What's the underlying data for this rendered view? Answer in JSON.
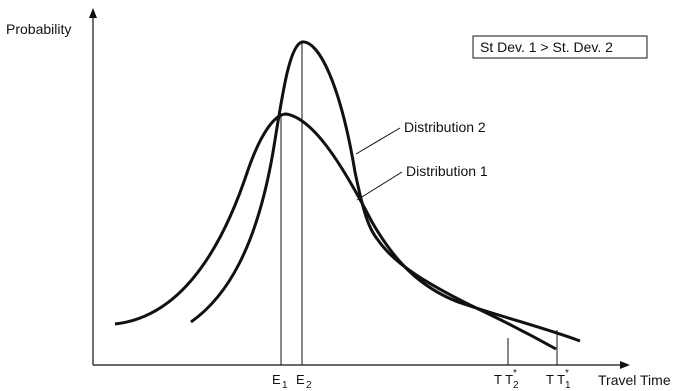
{
  "labels": {
    "y_axis": "Probability",
    "x_axis": "Travel Time",
    "legend_box": "St Dev. 1 > St. Dev. 2",
    "curve2": "Distribution 2",
    "curve1": "Distribution 1"
  },
  "ticks": {
    "e1": {
      "base": "E",
      "sub": "1"
    },
    "e2": {
      "base": "E",
      "sub": "2"
    },
    "tt2": {
      "base": "T T",
      "sup": "*",
      "sub": "2"
    },
    "tt1": {
      "base": "T T",
      "sup": "*",
      "sub": "1"
    }
  },
  "colors": {
    "ink": "#111111",
    "background": "#ffffff"
  }
}
